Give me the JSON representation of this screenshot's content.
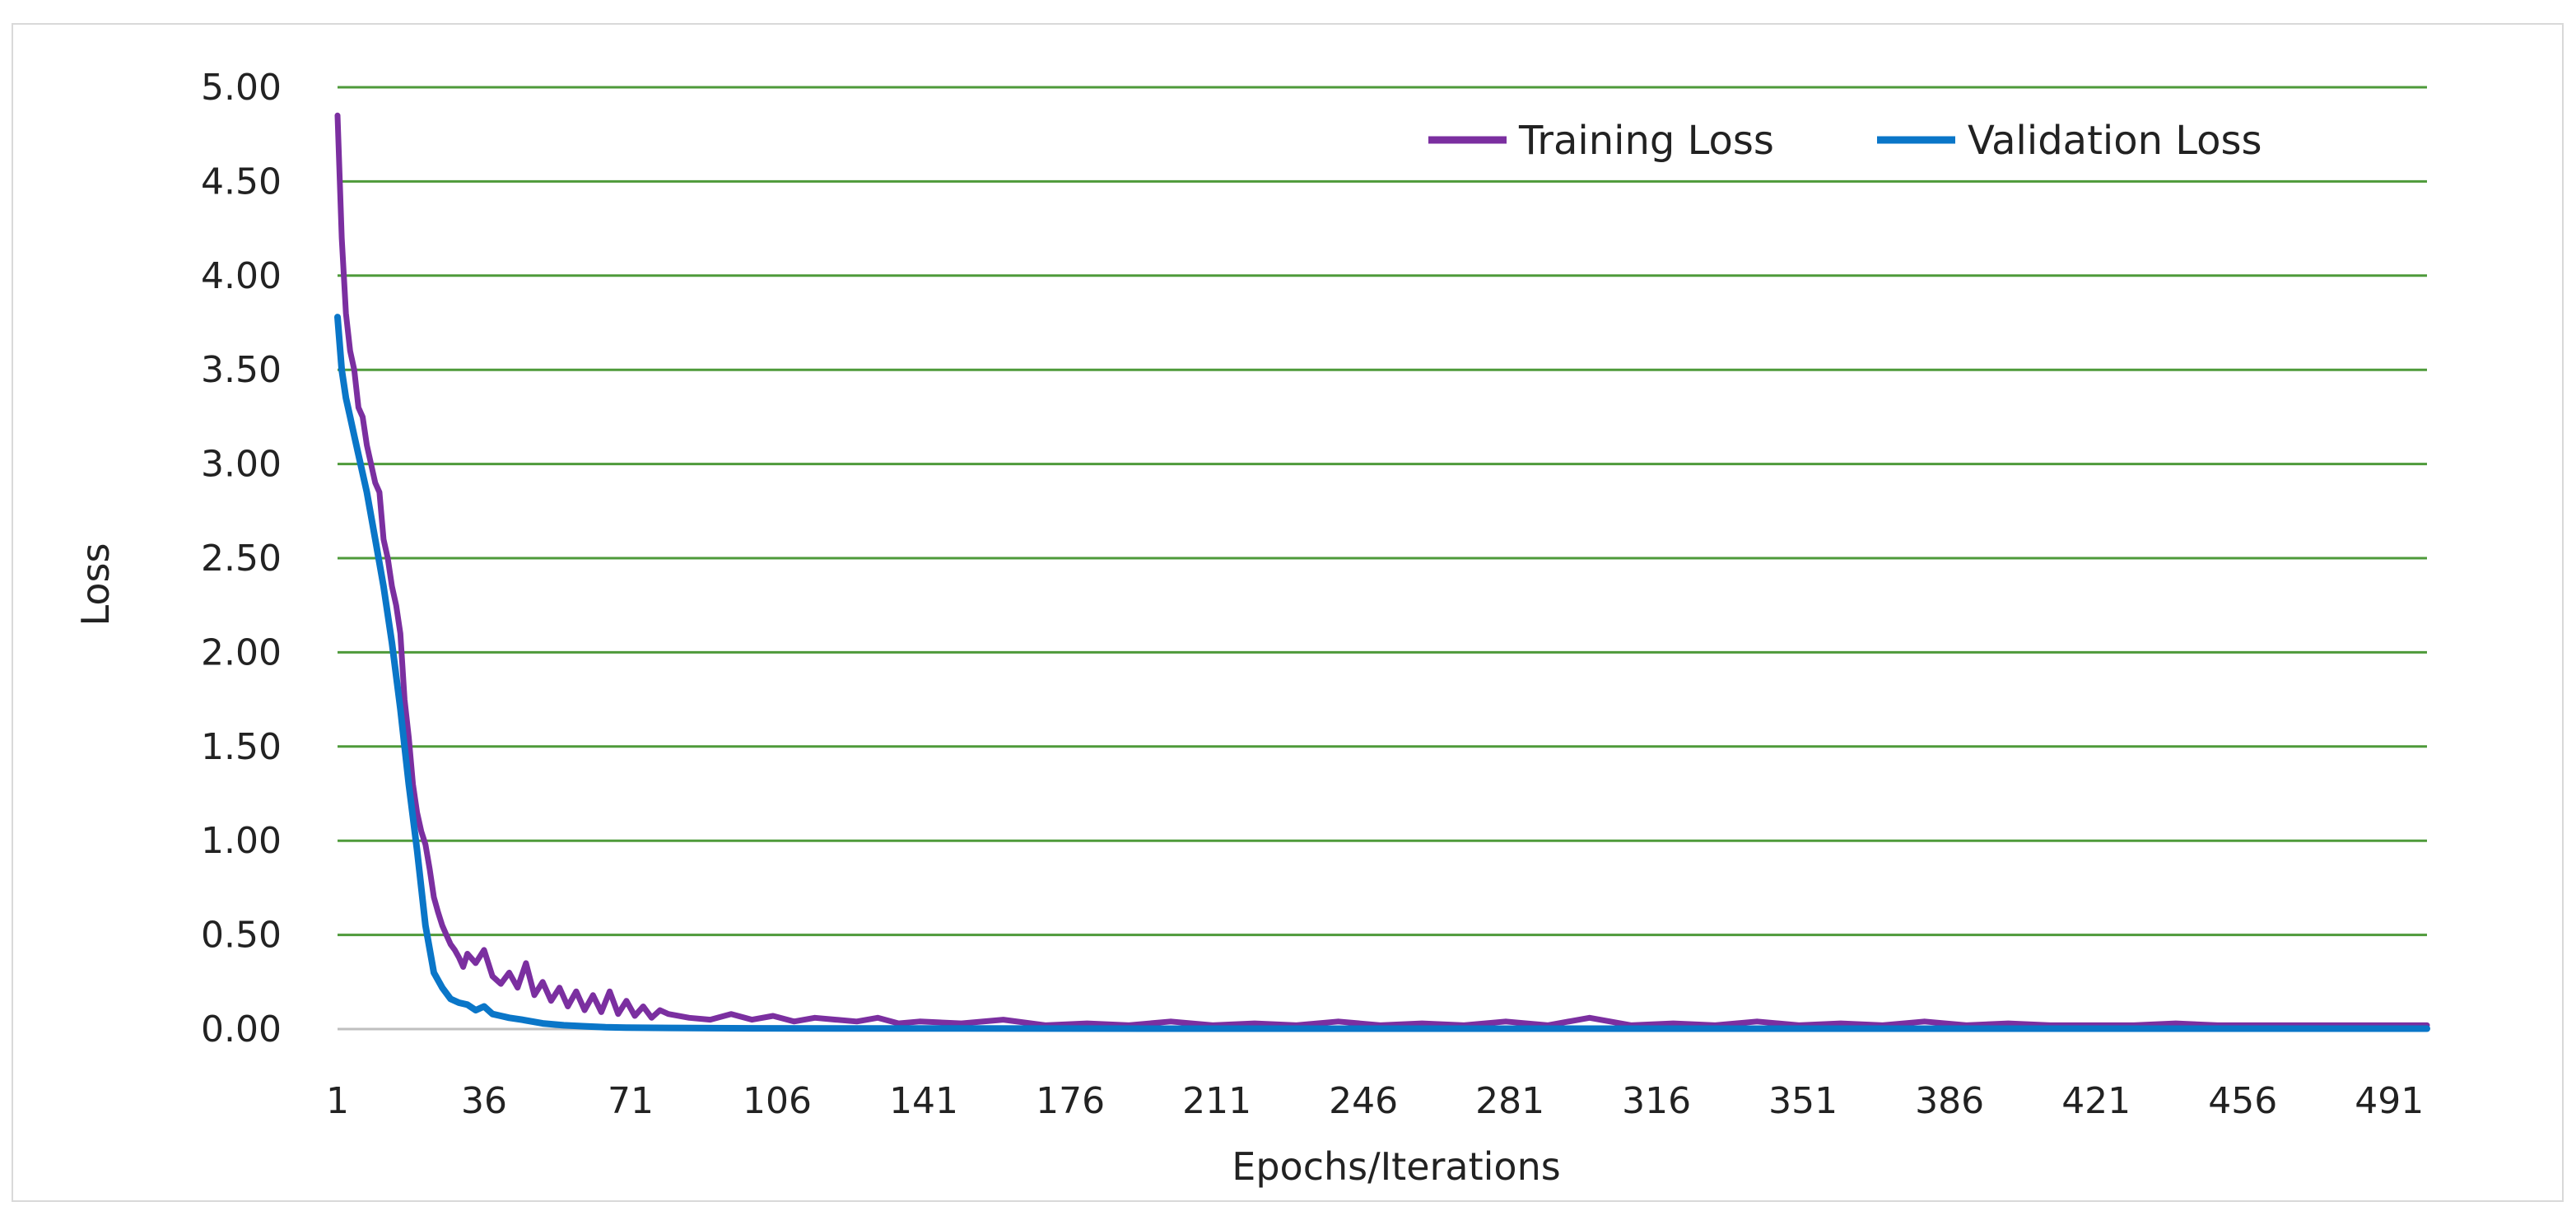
{
  "chart_data": {
    "type": "line",
    "title": "",
    "xlabel": "Epochs/Iterations",
    "ylabel": "Loss",
    "xlim": [
      1,
      500
    ],
    "ylim": [
      0,
      5
    ],
    "grid": true,
    "legend_position": "top-right",
    "x_ticks": [
      "1",
      "36",
      "71",
      "106",
      "141",
      "176",
      "211",
      "246",
      "281",
      "316",
      "351",
      "386",
      "421",
      "456",
      "491"
    ],
    "y_ticks": [
      "0.00",
      "0.50",
      "1.00",
      "1.50",
      "2.00",
      "2.50",
      "3.00",
      "3.50",
      "4.00",
      "4.50",
      "5.00"
    ],
    "colors": {
      "grid": "#4e9a3a",
      "training": "#7b2fa0",
      "validation": "#0a76c8"
    },
    "series": [
      {
        "name": "Training Loss",
        "color": "#7b2fa0",
        "x": [
          1,
          2,
          3,
          4,
          5,
          6,
          7,
          8,
          9,
          10,
          11,
          12,
          13,
          14,
          15,
          16,
          17,
          18,
          19,
          20,
          21,
          22,
          23,
          24,
          25,
          26,
          27,
          28,
          29,
          30,
          31,
          32,
          34,
          36,
          38,
          40,
          42,
          44,
          46,
          48,
          50,
          52,
          54,
          56,
          58,
          60,
          62,
          64,
          66,
          68,
          70,
          72,
          74,
          76,
          78,
          80,
          85,
          90,
          95,
          100,
          105,
          110,
          115,
          120,
          125,
          130,
          135,
          140,
          150,
          160,
          170,
          180,
          190,
          200,
          210,
          220,
          230,
          240,
          250,
          260,
          270,
          280,
          290,
          300,
          310,
          320,
          330,
          340,
          350,
          360,
          370,
          380,
          390,
          400,
          410,
          420,
          430,
          440,
          450,
          460,
          470,
          480,
          490,
          500
        ],
        "values": [
          4.85,
          4.2,
          3.8,
          3.6,
          3.5,
          3.3,
          3.25,
          3.1,
          3.0,
          2.9,
          2.85,
          2.6,
          2.5,
          2.35,
          2.25,
          2.1,
          1.75,
          1.55,
          1.3,
          1.15,
          1.05,
          0.98,
          0.85,
          0.7,
          0.62,
          0.55,
          0.5,
          0.45,
          0.42,
          0.38,
          0.33,
          0.4,
          0.35,
          0.42,
          0.28,
          0.24,
          0.3,
          0.22,
          0.35,
          0.18,
          0.25,
          0.15,
          0.22,
          0.12,
          0.2,
          0.1,
          0.18,
          0.09,
          0.2,
          0.08,
          0.15,
          0.07,
          0.12,
          0.06,
          0.1,
          0.08,
          0.06,
          0.05,
          0.08,
          0.05,
          0.07,
          0.04,
          0.06,
          0.05,
          0.04,
          0.06,
          0.03,
          0.04,
          0.03,
          0.05,
          0.02,
          0.03,
          0.02,
          0.04,
          0.02,
          0.03,
          0.02,
          0.04,
          0.02,
          0.03,
          0.02,
          0.04,
          0.02,
          0.06,
          0.02,
          0.03,
          0.02,
          0.04,
          0.02,
          0.03,
          0.02,
          0.04,
          0.02,
          0.03,
          0.02,
          0.02,
          0.02,
          0.03,
          0.02,
          0.02,
          0.02,
          0.02,
          0.02,
          0.02
        ]
      },
      {
        "name": "Validation Loss",
        "color": "#0a76c8",
        "x": [
          1,
          2,
          3,
          4,
          5,
          6,
          8,
          10,
          12,
          14,
          16,
          18,
          20,
          22,
          24,
          26,
          28,
          30,
          32,
          34,
          36,
          38,
          40,
          42,
          45,
          50,
          55,
          60,
          65,
          70,
          80,
          90,
          100,
          120,
          150,
          200,
          250,
          300,
          350,
          400,
          450,
          500
        ],
        "values": [
          3.78,
          3.5,
          3.35,
          3.25,
          3.15,
          3.05,
          2.85,
          2.6,
          2.35,
          2.05,
          1.7,
          1.3,
          0.95,
          0.55,
          0.3,
          0.22,
          0.16,
          0.14,
          0.13,
          0.1,
          0.12,
          0.08,
          0.07,
          0.06,
          0.05,
          0.03,
          0.02,
          0.015,
          0.01,
          0.008,
          0.006,
          0.005,
          0.004,
          0.003,
          0.003,
          0.002,
          0.002,
          0.002,
          0.002,
          0.002,
          0.002,
          0.002
        ]
      }
    ]
  }
}
